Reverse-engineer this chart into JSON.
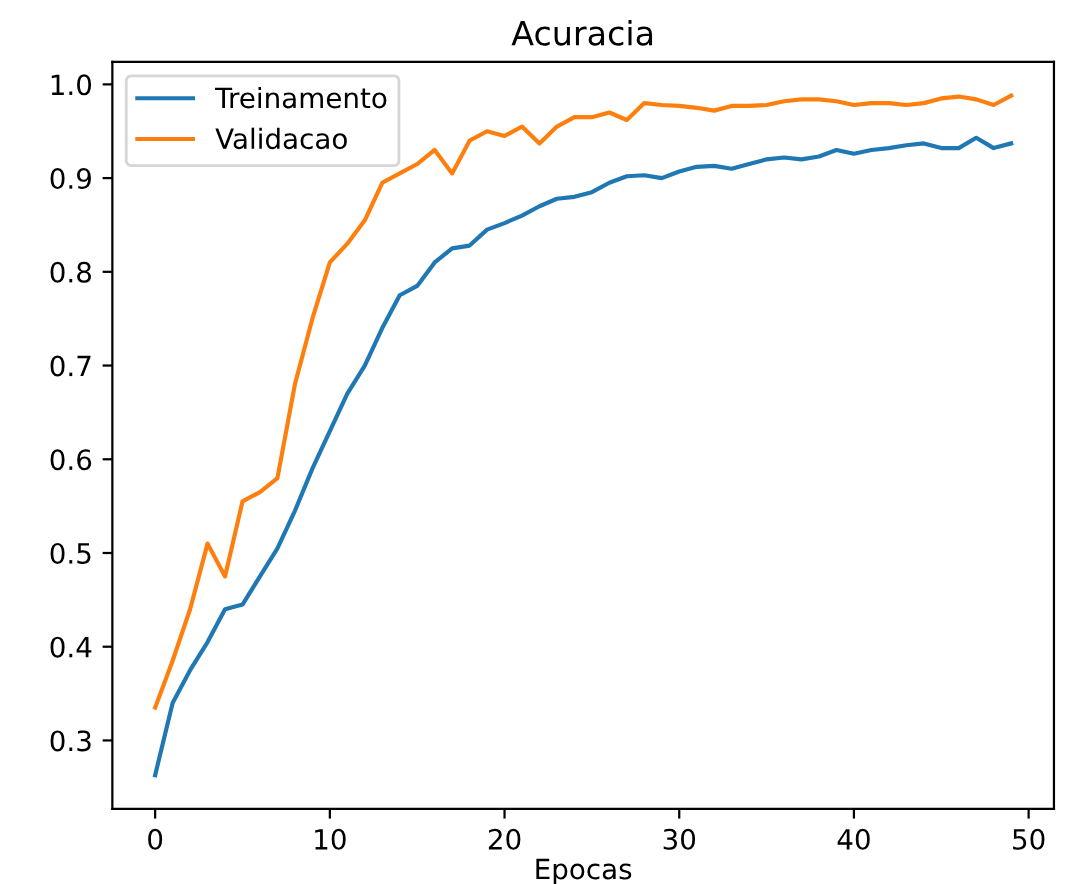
{
  "chart_data": {
    "type": "line",
    "title": "Acuracia",
    "xlabel": "Epocas",
    "x": [
      0,
      1,
      2,
      3,
      4,
      5,
      6,
      7,
      8,
      9,
      10,
      11,
      12,
      13,
      14,
      15,
      16,
      17,
      18,
      19,
      20,
      21,
      22,
      23,
      24,
      25,
      26,
      27,
      28,
      29,
      30,
      31,
      32,
      33,
      34,
      35,
      36,
      37,
      38,
      39,
      40,
      41,
      42,
      43,
      44,
      45,
      46,
      47,
      48,
      49
    ],
    "series": [
      {
        "name": "Treinamento",
        "color": "#1f77b4",
        "values": [
          0.263,
          0.34,
          0.375,
          0.405,
          0.44,
          0.445,
          0.475,
          0.505,
          0.545,
          0.59,
          0.63,
          0.67,
          0.7,
          0.74,
          0.775,
          0.785,
          0.81,
          0.825,
          0.828,
          0.845,
          0.852,
          0.86,
          0.87,
          0.878,
          0.88,
          0.885,
          0.895,
          0.902,
          0.903,
          0.9,
          0.907,
          0.912,
          0.913,
          0.91,
          0.915,
          0.92,
          0.922,
          0.92,
          0.923,
          0.93,
          0.926,
          0.93,
          0.932,
          0.935,
          0.937,
          0.932,
          0.932,
          0.943,
          0.932,
          0.937
        ]
      },
      {
        "name": "Validacao",
        "color": "#ff7f0e",
        "values": [
          0.335,
          0.385,
          0.44,
          0.51,
          0.475,
          0.555,
          0.565,
          0.58,
          0.68,
          0.75,
          0.81,
          0.83,
          0.855,
          0.895,
          0.905,
          0.915,
          0.93,
          0.905,
          0.94,
          0.95,
          0.945,
          0.955,
          0.937,
          0.955,
          0.965,
          0.965,
          0.97,
          0.962,
          0.98,
          0.978,
          0.977,
          0.975,
          0.972,
          0.977,
          0.977,
          0.978,
          0.982,
          0.984,
          0.984,
          0.982,
          0.978,
          0.98,
          0.98,
          0.978,
          0.98,
          0.985,
          0.987,
          0.984,
          0.978,
          0.988
        ]
      }
    ],
    "xlim": [
      -2.45,
      51.45
    ],
    "ylim": [
      0.227,
      1.024
    ],
    "xticks": [
      0,
      10,
      20,
      30,
      40,
      50
    ],
    "yticks": [
      0.3,
      0.4,
      0.5,
      0.6,
      0.7,
      0.8,
      0.9,
      {
        "value": 1,
        "label": "1.0"
      }
    ],
    "legend": "top left",
    "grid": false,
    "marker": "none",
    "line_style": "solid"
  }
}
